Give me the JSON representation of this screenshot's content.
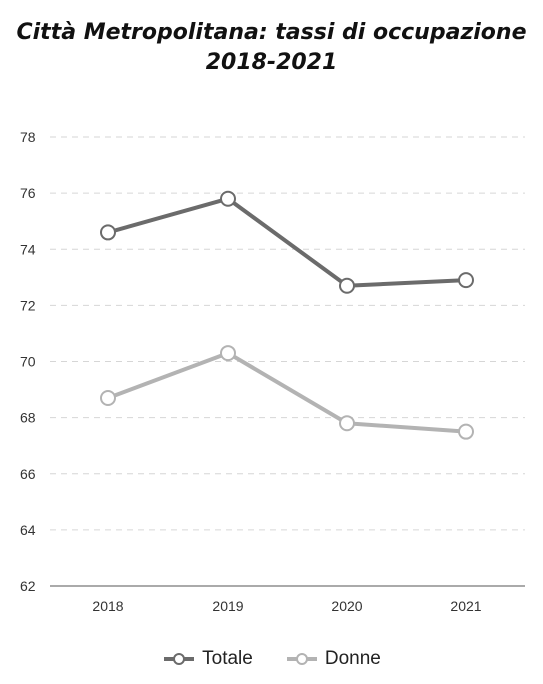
{
  "title_line1": "Città Metropolitana: tassi di occupazione",
  "title_line2": "2018-2021",
  "chart_data": {
    "type": "line",
    "title": "Città Metropolitana: tassi di occupazione 2018-2021",
    "categories": [
      "2018",
      "2019",
      "2020",
      "2021"
    ],
    "series": [
      {
        "name": "Totale",
        "values": [
          74.6,
          75.8,
          72.7,
          72.9
        ],
        "color": "#6b6b6b"
      },
      {
        "name": "Donne",
        "values": [
          68.7,
          70.3,
          67.8,
          67.5
        ],
        "color": "#b3b3b3"
      }
    ],
    "ylim": [
      62,
      78
    ],
    "yticks": [
      "62",
      "64",
      "66",
      "68",
      "70",
      "72",
      "74",
      "76",
      "78"
    ],
    "grid": true,
    "legend_position": "bottom",
    "xlabel": "",
    "ylabel": ""
  }
}
